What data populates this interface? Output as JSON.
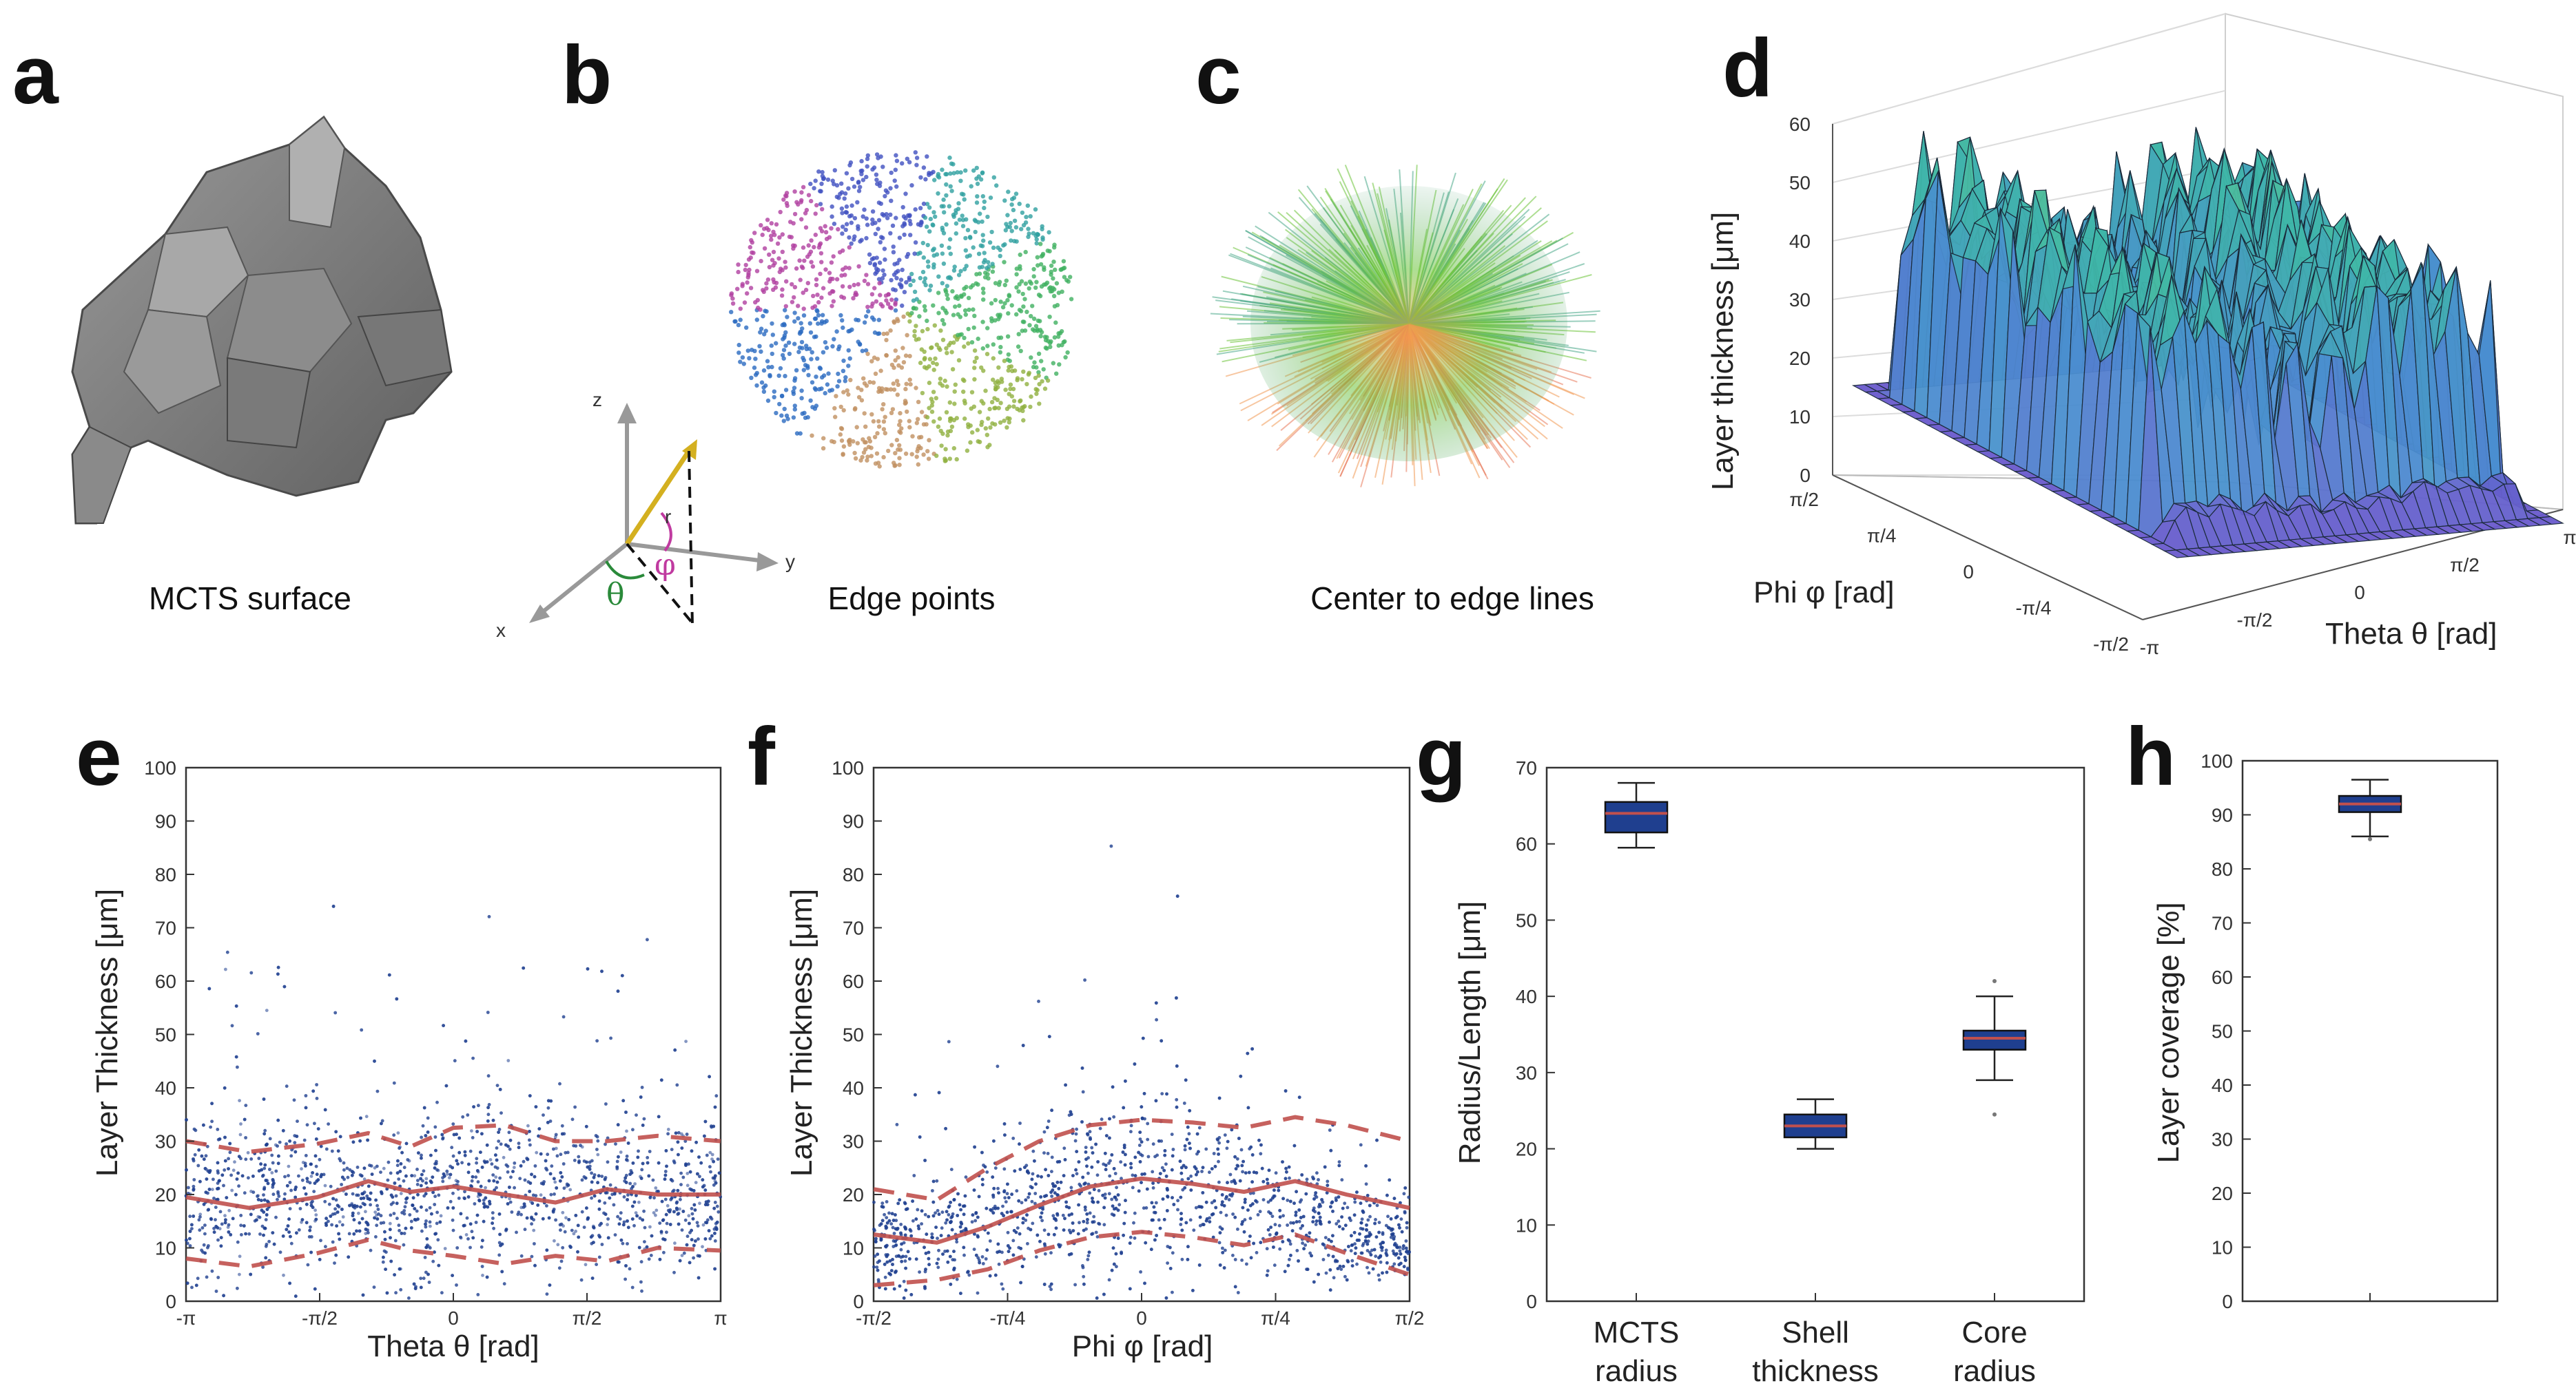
{
  "figure": {
    "panel_labels": [
      "a",
      "b",
      "c",
      "d",
      "e",
      "f",
      "g",
      "h"
    ],
    "captions": {
      "a": "MCTS surface",
      "b": "Edge points",
      "c": "Center to edge lines"
    },
    "coord_axes": {
      "z": "z",
      "y": "y",
      "x": "x",
      "r": "r",
      "theta": "θ",
      "phi": "φ"
    },
    "colors": {
      "scatter": "#1f3f8f",
      "median_line": "#c0504d",
      "box_fill": "#1f3f8f",
      "surface_low": "#6a5acd",
      "surface_high": "#b5e55a",
      "mesh_gray": "#8a8a8a"
    }
  },
  "chart_data": [
    {
      "panel": "d",
      "type": "surface",
      "zlabel": "Layer thickness [μm]",
      "xlabel": "Theta θ [rad]",
      "ylabel": "Phi φ [rad]",
      "zlim": [
        0,
        60
      ],
      "zticks": [
        "0",
        "10",
        "20",
        "30",
        "40",
        "50",
        "60"
      ],
      "xticks": [
        "-π",
        "-π/2",
        "0",
        "π/2",
        "π"
      ],
      "yticks": [
        "-π/2",
        "-π/4",
        "0",
        "π/4",
        "π/2"
      ]
    },
    {
      "panel": "e",
      "type": "scatter",
      "xlabel": "Theta θ [rad]",
      "ylabel": "Layer Thickness [μm]",
      "xlim": [
        -3.1416,
        3.1416
      ],
      "ylim": [
        0,
        100
      ],
      "xticks": [
        "-π",
        "-π/2",
        "0",
        "π/2",
        "π"
      ],
      "yticks": [
        "0",
        "10",
        "20",
        "30",
        "40",
        "50",
        "60",
        "70",
        "80",
        "90",
        "100"
      ],
      "median_line": {
        "x": [
          -3.14,
          -2.4,
          -1.6,
          -1.0,
          -0.5,
          0.0,
          0.6,
          1.2,
          1.8,
          2.4,
          3.14
        ],
        "y": [
          19.5,
          17.5,
          19.5,
          22.5,
          20.5,
          21.5,
          20.0,
          18.5,
          21.0,
          20.0,
          20.0
        ]
      },
      "upper_line": {
        "x": [
          -3.14,
          -2.4,
          -1.6,
          -1.0,
          -0.5,
          0.0,
          0.6,
          1.2,
          1.8,
          2.4,
          3.14
        ],
        "y": [
          30.0,
          28.0,
          29.5,
          31.5,
          29.0,
          32.5,
          33.0,
          30.0,
          30.0,
          31.0,
          30.0
        ]
      },
      "lower_line": {
        "x": [
          -3.14,
          -2.4,
          -1.6,
          -1.0,
          -0.5,
          0.0,
          0.6,
          1.2,
          1.8,
          2.4,
          3.14
        ],
        "y": [
          8.0,
          6.5,
          9.0,
          11.5,
          9.5,
          8.5,
          7.0,
          8.5,
          7.5,
          10.0,
          9.5
        ]
      }
    },
    {
      "panel": "f",
      "type": "scatter",
      "xlabel": "Phi φ [rad]",
      "ylabel": "Layer Thickness [μm]",
      "xlim": [
        -1.5708,
        1.5708
      ],
      "ylim": [
        0,
        100
      ],
      "xticks": [
        "-π/2",
        "-π/4",
        "0",
        "π/4",
        "π/2"
      ],
      "yticks": [
        "0",
        "10",
        "20",
        "30",
        "40",
        "50",
        "60",
        "70",
        "80",
        "90",
        "100"
      ],
      "median_line": {
        "x": [
          -1.57,
          -1.2,
          -0.9,
          -0.6,
          -0.3,
          0.0,
          0.3,
          0.6,
          0.9,
          1.2,
          1.57
        ],
        "y": [
          12.5,
          11.0,
          14.0,
          18.0,
          21.5,
          23.0,
          22.0,
          20.5,
          22.5,
          20.0,
          17.5
        ]
      },
      "upper_line": {
        "x": [
          -1.57,
          -1.2,
          -0.9,
          -0.6,
          -0.3,
          0.0,
          0.3,
          0.6,
          0.9,
          1.2,
          1.57
        ],
        "y": [
          21.0,
          19.0,
          25.0,
          30.0,
          33.0,
          34.0,
          33.5,
          32.5,
          34.5,
          33.0,
          30.0
        ]
      },
      "lower_line": {
        "x": [
          -1.57,
          -1.2,
          -0.9,
          -0.6,
          -0.3,
          0.0,
          0.3,
          0.6,
          0.9,
          1.2,
          1.57
        ],
        "y": [
          3.0,
          4.0,
          6.0,
          9.5,
          12.0,
          13.0,
          12.0,
          10.5,
          12.5,
          9.0,
          5.0
        ]
      }
    },
    {
      "panel": "g",
      "type": "box",
      "ylabel": "Radius/Length [μm]",
      "ylim": [
        0,
        70
      ],
      "yticks": [
        "0",
        "10",
        "20",
        "30",
        "40",
        "50",
        "60",
        "70"
      ],
      "categories": [
        [
          "MCTS",
          "radius"
        ],
        [
          "Shell",
          "thickness"
        ],
        [
          "Core",
          "radius"
        ]
      ],
      "boxes": [
        {
          "whisker_low": 59.5,
          "q1": 61.5,
          "median": 64.0,
          "q3": 65.5,
          "whisker_high": 68.0,
          "outliers": []
        },
        {
          "whisker_low": 20.0,
          "q1": 21.5,
          "median": 23.0,
          "q3": 24.5,
          "whisker_high": 26.5,
          "outliers": []
        },
        {
          "whisker_low": 29.0,
          "q1": 33.0,
          "median": 34.5,
          "q3": 35.5,
          "whisker_high": 40.0,
          "outliers": [
            24.5,
            42.0
          ]
        }
      ]
    },
    {
      "panel": "h",
      "type": "box",
      "ylabel": "Layer coverage [%]",
      "ylim": [
        0,
        100
      ],
      "yticks": [
        "0",
        "10",
        "20",
        "30",
        "40",
        "50",
        "60",
        "70",
        "80",
        "90",
        "100"
      ],
      "categories": [
        [
          "",
          ""
        ]
      ],
      "boxes": [
        {
          "whisker_low": 86.0,
          "q1": 90.5,
          "median": 92.0,
          "q3": 93.5,
          "whisker_high": 96.5,
          "outliers": [
            85.5
          ]
        }
      ]
    }
  ]
}
